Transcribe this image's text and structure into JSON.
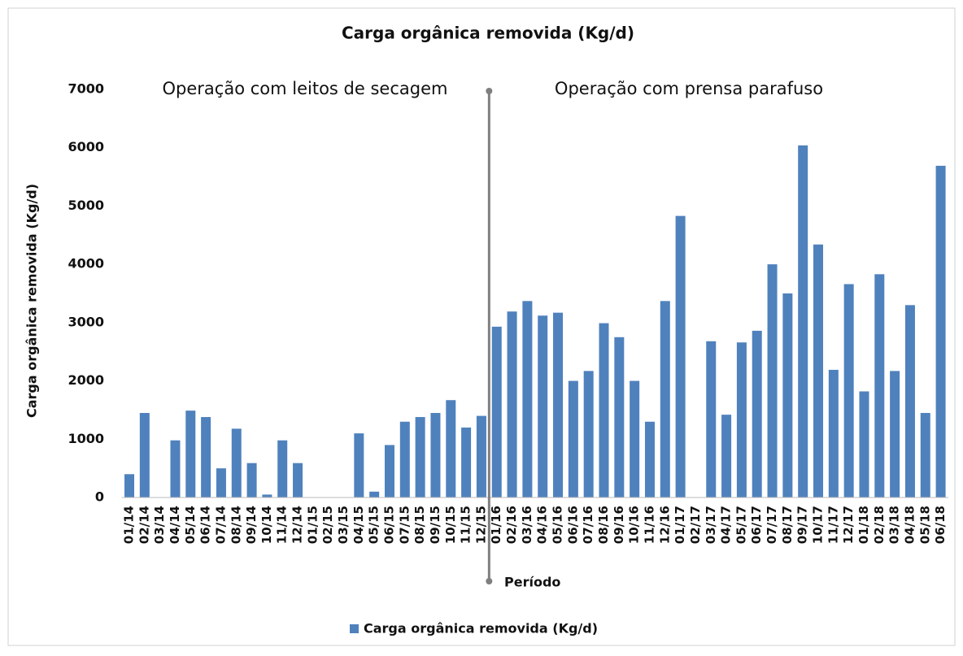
{
  "chart_data": {
    "type": "bar",
    "title": "Carga orgânica removida (Kg/d)",
    "x_label": "Período",
    "y_label": "Carga orgânica removida (Kg/d)",
    "annotations": [
      "Operação com leitos de secagem",
      "Operação com prensa parafuso"
    ],
    "categories": [
      "01/14",
      "02/14",
      "03/14",
      "04/14",
      "05/14",
      "06/14",
      "07/14",
      "08/14",
      "09/14",
      "10/14",
      "11/14",
      "12/14",
      "01/15",
      "02/15",
      "03/15",
      "04/15",
      "05/15",
      "06/15",
      "07/15",
      "08/15",
      "09/15",
      "10/15",
      "11/15",
      "12/15",
      "01/16",
      "02/16",
      "03/16",
      "04/16",
      "05/16",
      "06/16",
      "07/16",
      "08/16",
      "09/16",
      "10/16",
      "11/16",
      "12/16",
      "01/17",
      "02/17",
      "03/17",
      "04/17",
      "05/17",
      "06/17",
      "07/17",
      "08/17",
      "09/17",
      "10/17",
      "11/17",
      "12/17",
      "01/18",
      "02/18",
      "03/18",
      "04/18",
      "05/18",
      "06/18"
    ],
    "series": [
      {
        "name": "Carga orgânica removida (Kg/d)",
        "color": "#4f81bd",
        "values": [
          400,
          1450,
          0,
          980,
          1490,
          1380,
          500,
          1180,
          590,
          50,
          980,
          590,
          0,
          0,
          0,
          1100,
          100,
          900,
          1300,
          1380,
          1450,
          1670,
          1200,
          1400,
          2930,
          3190,
          3370,
          3120,
          3170,
          2000,
          2170,
          2990,
          2750,
          2000,
          1300,
          3370,
          4830,
          0,
          2680,
          1420,
          2660,
          2860,
          4000,
          3500,
          6040,
          4340,
          2190,
          3660,
          1820,
          3830,
          2170,
          3300,
          1450,
          5690
        ]
      }
    ],
    "ylim": [
      0,
      7000
    ],
    "yticks": [
      0,
      1000,
      2000,
      3000,
      4000,
      5000,
      6000,
      7000
    ],
    "grid": false,
    "legend": "bottom"
  }
}
